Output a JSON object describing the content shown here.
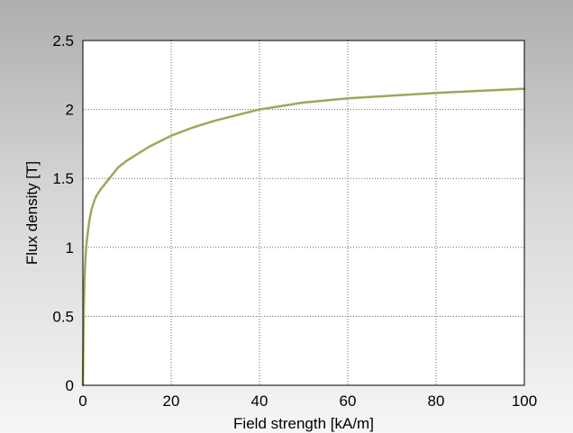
{
  "chart_data": {
    "type": "line",
    "title": "",
    "xlabel": "Field strength [kA/m]",
    "ylabel": "Flux density [T]",
    "xlim": [
      0,
      100
    ],
    "ylim": [
      0,
      2.5
    ],
    "xticks": [
      "0",
      "20",
      "40",
      "60",
      "80",
      "100"
    ],
    "yticks": [
      "0",
      "0.5",
      "1",
      "1.5",
      "2",
      "2.5"
    ],
    "grid": true,
    "legend": "none",
    "series": [
      {
        "color": "#9aaa5a",
        "x": [
          0,
          0.2,
          0.4,
          0.6,
          0.8,
          1,
          1.5,
          2,
          2.5,
          3,
          4,
          5,
          6,
          8,
          10,
          15,
          20,
          25,
          30,
          40,
          50,
          60,
          70,
          80,
          90,
          100
        ],
        "y": [
          0,
          0.55,
          0.8,
          0.93,
          1.02,
          1.08,
          1.2,
          1.28,
          1.33,
          1.37,
          1.42,
          1.46,
          1.5,
          1.58,
          1.63,
          1.73,
          1.81,
          1.87,
          1.92,
          2.0,
          2.05,
          2.08,
          2.1,
          2.12,
          2.135,
          2.15
        ]
      }
    ]
  }
}
